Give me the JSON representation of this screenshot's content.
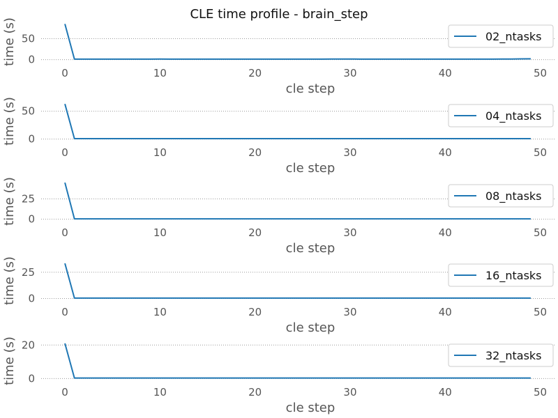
{
  "title": "CLE time profile - brain_step",
  "colors": {
    "line": "#1f77b4",
    "text": "#555555",
    "grid": "#9a9a9a"
  },
  "chart_data": [
    {
      "type": "line",
      "title": "",
      "xlabel": "cle step",
      "ylabel": "time (s)",
      "xlim": [
        -2.5,
        51.5
      ],
      "ylim": [
        -4,
        89
      ],
      "xticks": [
        0,
        10,
        20,
        30,
        40,
        50
      ],
      "yticks": [
        0,
        50
      ],
      "grid": "y",
      "legend": "top-right",
      "series": [
        {
          "name": "02_ntasks",
          "x": [
            0,
            1,
            2,
            3,
            4,
            5,
            6,
            7,
            8,
            9,
            10,
            11,
            12,
            13,
            14,
            15,
            16,
            17,
            18,
            19,
            20,
            21,
            22,
            23,
            24,
            25,
            26,
            27,
            28,
            29,
            30,
            31,
            32,
            33,
            34,
            35,
            36,
            37,
            38,
            39,
            40,
            41,
            42,
            43,
            44,
            45,
            46,
            47,
            48,
            49
          ],
          "y": [
            85,
            1.2,
            1.2,
            1.2,
            1.2,
            1.2,
            1.2,
            1.2,
            1.2,
            1.2,
            1.3,
            1.2,
            1.2,
            1.2,
            1.2,
            1.2,
            1.2,
            1.2,
            1.2,
            1.2,
            1.2,
            1.2,
            1.2,
            1.2,
            1.2,
            1.2,
            1.2,
            1.2,
            1.3,
            1.3,
            1.4,
            1.2,
            1.2,
            1.2,
            1.2,
            1.2,
            1.2,
            1.2,
            1.2,
            1.2,
            1.2,
            1.2,
            1.2,
            1.2,
            1.2,
            1.2,
            1.3,
            1.5,
            1.8,
            2
          ]
        }
      ]
    },
    {
      "type": "line",
      "title": "",
      "xlabel": "cle step",
      "ylabel": "time (s)",
      "xlim": [
        -2.5,
        51.5
      ],
      "ylim": [
        -3,
        67
      ],
      "xticks": [
        0,
        10,
        20,
        30,
        40,
        50
      ],
      "yticks": [
        0,
        50
      ],
      "grid": "y",
      "legend": "top-right",
      "series": [
        {
          "name": "04_ntasks",
          "x": [
            0,
            1,
            2,
            3,
            4,
            5,
            6,
            7,
            8,
            9,
            10,
            11,
            12,
            13,
            14,
            15,
            16,
            17,
            18,
            19,
            20,
            21,
            22,
            23,
            24,
            25,
            26,
            27,
            28,
            29,
            30,
            31,
            32,
            33,
            34,
            35,
            36,
            37,
            38,
            39,
            40,
            41,
            42,
            43,
            44,
            45,
            46,
            47,
            48,
            49
          ],
          "y": [
            63,
            0.7,
            0.7,
            0.7,
            0.7,
            0.7,
            0.7,
            0.7,
            0.7,
            0.7,
            0.7,
            0.7,
            0.7,
            0.7,
            0.7,
            0.7,
            0.7,
            0.7,
            0.7,
            0.7,
            0.7,
            0.7,
            0.7,
            0.7,
            0.7,
            0.7,
            0.7,
            0.7,
            0.7,
            0.7,
            0.7,
            0.7,
            0.7,
            0.7,
            0.7,
            0.7,
            0.7,
            0.7,
            0.7,
            0.7,
            0.7,
            0.7,
            0.7,
            0.7,
            0.7,
            0.7,
            0.7,
            0.7,
            0.7,
            0.7
          ]
        }
      ]
    },
    {
      "type": "line",
      "title": "",
      "xlabel": "cle step",
      "ylabel": "time (s)",
      "xlim": [
        -2.5,
        51.5
      ],
      "ylim": [
        -2,
        46
      ],
      "xticks": [
        0,
        10,
        20,
        30,
        40,
        50
      ],
      "yticks": [
        0,
        25
      ],
      "grid": "y",
      "legend": "top-right",
      "series": [
        {
          "name": "08_ntasks",
          "x": [
            0,
            1,
            2,
            3,
            4,
            5,
            6,
            7,
            8,
            9,
            10,
            11,
            12,
            13,
            14,
            15,
            16,
            17,
            18,
            19,
            20,
            21,
            22,
            23,
            24,
            25,
            26,
            27,
            28,
            29,
            30,
            31,
            32,
            33,
            34,
            35,
            36,
            37,
            38,
            39,
            40,
            41,
            42,
            43,
            44,
            45,
            46,
            47,
            48,
            49
          ],
          "y": [
            45,
            0.5,
            0.5,
            0.5,
            0.5,
            0.5,
            0.5,
            0.5,
            0.5,
            0.5,
            0.5,
            0.5,
            0.5,
            0.5,
            0.5,
            0.5,
            0.5,
            0.5,
            0.5,
            0.5,
            0.5,
            0.5,
            0.5,
            0.5,
            0.5,
            0.5,
            0.5,
            0.5,
            0.5,
            0.5,
            0.5,
            0.5,
            0.5,
            0.5,
            0.5,
            0.5,
            0.5,
            0.5,
            0.5,
            0.5,
            0.5,
            0.5,
            0.5,
            0.5,
            0.5,
            0.5,
            0.5,
            0.5,
            0.5,
            0.5
          ]
        }
      ]
    },
    {
      "type": "line",
      "title": "",
      "xlabel": "cle step",
      "ylabel": "time (s)",
      "xlim": [
        -2.5,
        51.5
      ],
      "ylim": [
        -1.7,
        35.5
      ],
      "xticks": [
        0,
        10,
        20,
        30,
        40,
        50
      ],
      "yticks": [
        0,
        25
      ],
      "grid": "y",
      "legend": "top-right",
      "series": [
        {
          "name": "16_ntasks",
          "x": [
            0,
            1,
            2,
            3,
            4,
            5,
            6,
            7,
            8,
            9,
            10,
            11,
            12,
            13,
            14,
            15,
            16,
            17,
            18,
            19,
            20,
            21,
            22,
            23,
            24,
            25,
            26,
            27,
            28,
            29,
            30,
            31,
            32,
            33,
            34,
            35,
            36,
            37,
            38,
            39,
            40,
            41,
            42,
            43,
            44,
            45,
            46,
            47,
            48,
            49
          ],
          "y": [
            33.5,
            0.4,
            0.4,
            0.4,
            0.4,
            0.4,
            0.4,
            0.4,
            0.4,
            0.4,
            0.4,
            0.4,
            0.4,
            0.4,
            0.4,
            0.4,
            0.4,
            0.4,
            0.4,
            0.4,
            0.4,
            0.4,
            0.4,
            0.4,
            0.4,
            0.4,
            0.4,
            0.4,
            0.4,
            0.4,
            0.4,
            0.4,
            0.4,
            0.4,
            0.4,
            0.4,
            0.4,
            0.4,
            0.4,
            0.4,
            0.4,
            0.4,
            0.4,
            0.4,
            0.4,
            0.4,
            0.4,
            0.4,
            0.4,
            0.4
          ]
        }
      ]
    },
    {
      "type": "line",
      "title": "",
      "xlabel": "cle step",
      "ylabel": "time (s)",
      "xlim": [
        -2.5,
        51.5
      ],
      "ylim": [
        -1.1,
        22.2
      ],
      "xticks": [
        0,
        10,
        20,
        30,
        40,
        50
      ],
      "yticks": [
        0,
        20
      ],
      "grid": "y",
      "legend": "top-right",
      "series": [
        {
          "name": "32_ntasks",
          "x": [
            0,
            1,
            2,
            3,
            4,
            5,
            6,
            7,
            8,
            9,
            10,
            11,
            12,
            13,
            14,
            15,
            16,
            17,
            18,
            19,
            20,
            21,
            22,
            23,
            24,
            25,
            26,
            27,
            28,
            29,
            30,
            31,
            32,
            33,
            34,
            35,
            36,
            37,
            38,
            39,
            40,
            41,
            42,
            43,
            44,
            45,
            46,
            47,
            48,
            49
          ],
          "y": [
            21,
            0.3,
            0.3,
            0.3,
            0.3,
            0.3,
            0.3,
            0.3,
            0.3,
            0.3,
            0.3,
            0.3,
            0.3,
            0.3,
            0.3,
            0.3,
            0.3,
            0.3,
            0.3,
            0.3,
            0.3,
            0.3,
            0.3,
            0.3,
            0.3,
            0.3,
            0.3,
            0.3,
            0.3,
            0.3,
            0.3,
            0.3,
            0.3,
            0.3,
            0.3,
            0.3,
            0.3,
            0.3,
            0.3,
            0.3,
            0.3,
            0.3,
            0.3,
            0.3,
            0.3,
            0.3,
            0.3,
            0.3,
            0.3,
            0.3
          ]
        }
      ]
    }
  ]
}
